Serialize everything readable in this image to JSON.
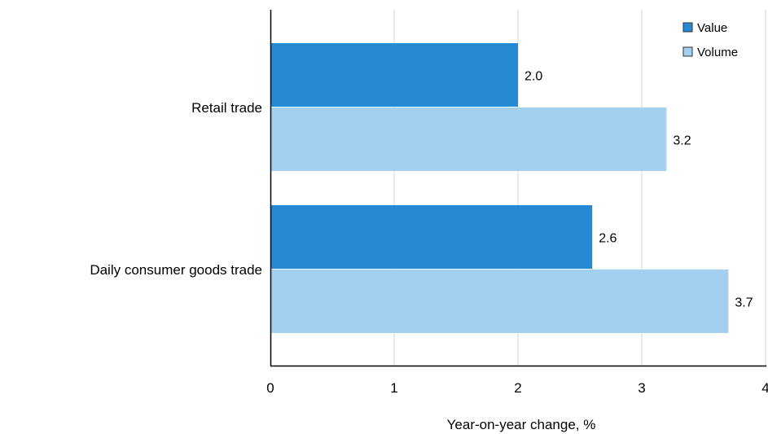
{
  "chart_data": {
    "type": "bar",
    "orientation": "horizontal",
    "categories": [
      "Retail trade",
      "Daily consumer goods trade"
    ],
    "series": [
      {
        "name": "Value",
        "values": [
          2.0,
          2.6
        ],
        "color": "#2589d3"
      },
      {
        "name": "Volume",
        "values": [
          3.2,
          3.7
        ],
        "color": "#a3d0ee"
      }
    ],
    "data_labels": [
      [
        "2.0",
        "2.6"
      ],
      [
        "3.2",
        "3.7"
      ]
    ],
    "xlabel": "Year-on-year change, %",
    "ylabel": "",
    "xlim": [
      0,
      4
    ],
    "xticks": [
      "0",
      "1",
      "2",
      "3",
      "4"
    ],
    "grid": "vertical",
    "legend_position": "top-right"
  }
}
